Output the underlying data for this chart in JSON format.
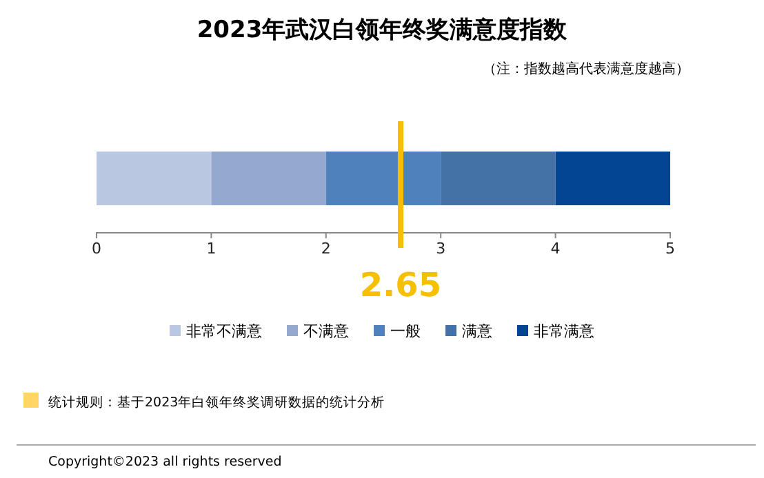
{
  "chart_data": {
    "type": "bar",
    "orientation": "horizontal",
    "stacked": true,
    "title": "2023年武汉白领年终奖满意度指数",
    "subtitle": "（注：指数越高代表满意度越高）",
    "categories": [
      null
    ],
    "series": [
      {
        "name": "非常不满意",
        "color": "#b9c7e0",
        "values": [
          1
        ]
      },
      {
        "name": "不满意",
        "color": "#95a9d0",
        "values": [
          1
        ]
      },
      {
        "name": "一般",
        "color": "#4f81bd",
        "values": [
          1
        ]
      },
      {
        "name": "满意",
        "color": "#4472a6",
        "values": [
          1
        ]
      },
      {
        "name": "非常满意",
        "color": "#044592",
        "values": [
          1
        ]
      }
    ],
    "xlim": [
      0,
      5
    ],
    "xticks": [
      0,
      1,
      2,
      3,
      4,
      5
    ],
    "grid": false,
    "legend": "bottom",
    "ref_lines": [
      {
        "axis": "x",
        "value": 2.65,
        "label": "2.65",
        "color": "#f5c000"
      }
    ],
    "annotations": [
      "统计规则：基于2023年白领年终奖调研数据的统计分析",
      "Copyright©2023 all rights reserved"
    ]
  }
}
